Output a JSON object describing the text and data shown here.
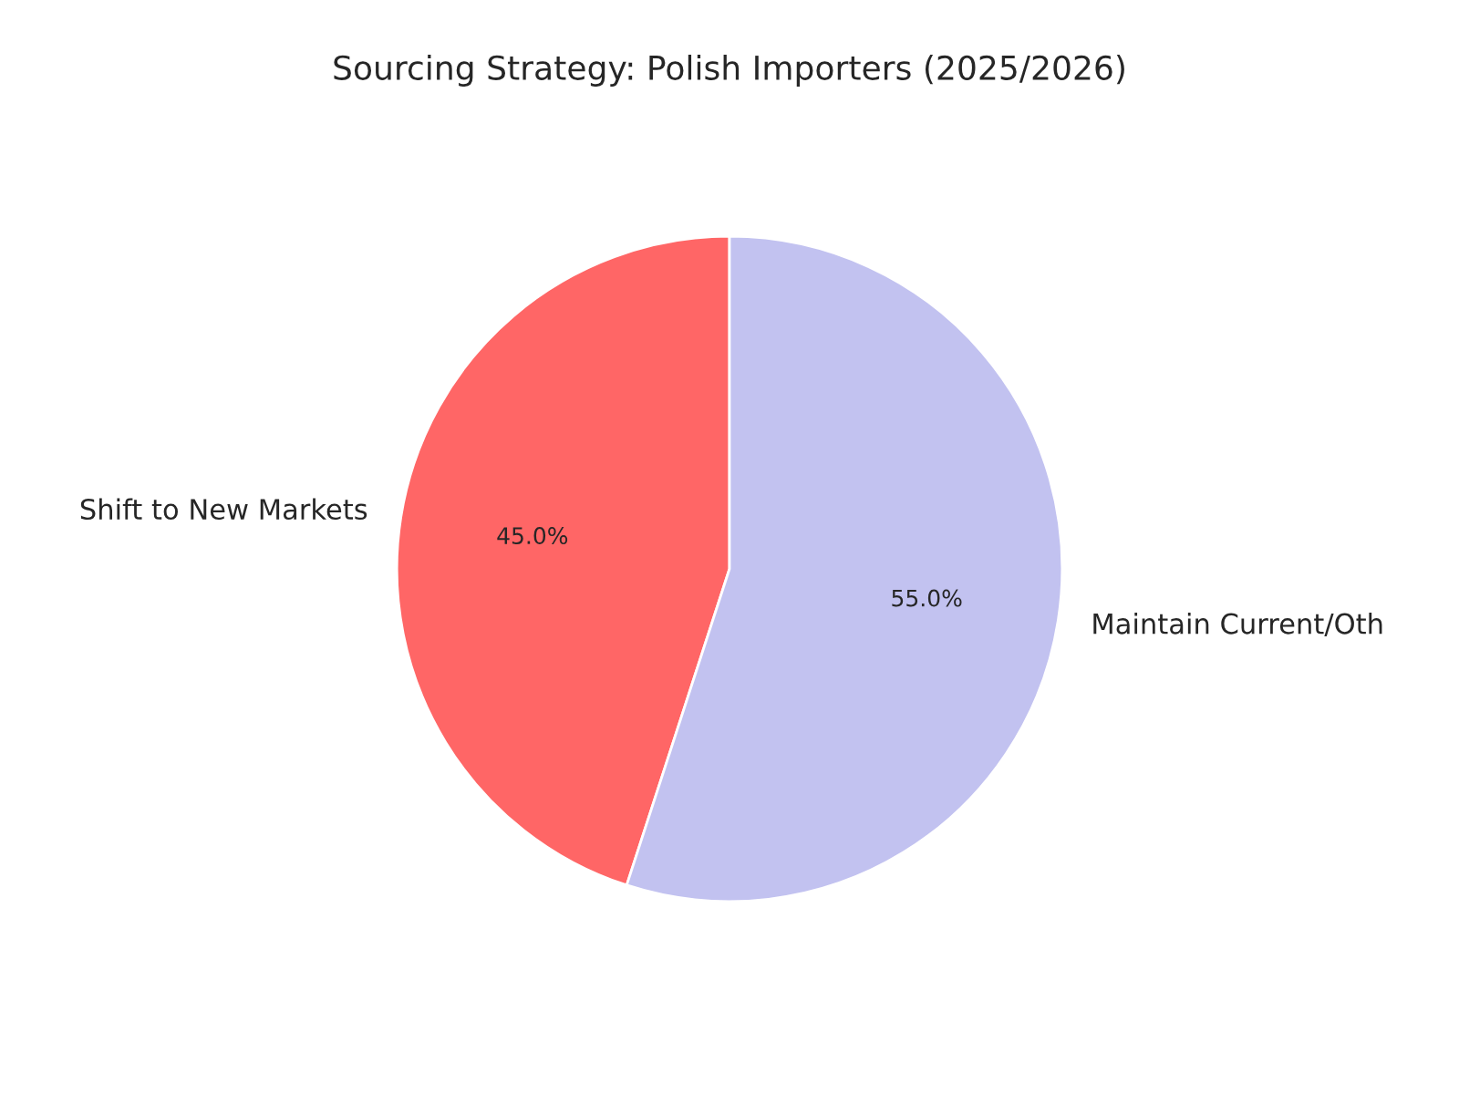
{
  "chart_data": {
    "type": "pie",
    "title": "Sourcing Strategy: Polish Importers (2025/2026)",
    "categories": [
      "Shift to New Markets",
      "Maintain Current/Oth"
    ],
    "values": [
      45,
      55
    ],
    "colors": [
      "#ff6666",
      "#c2c2f0"
    ],
    "value_labels": [
      "45.0%",
      "55.0%"
    ]
  }
}
